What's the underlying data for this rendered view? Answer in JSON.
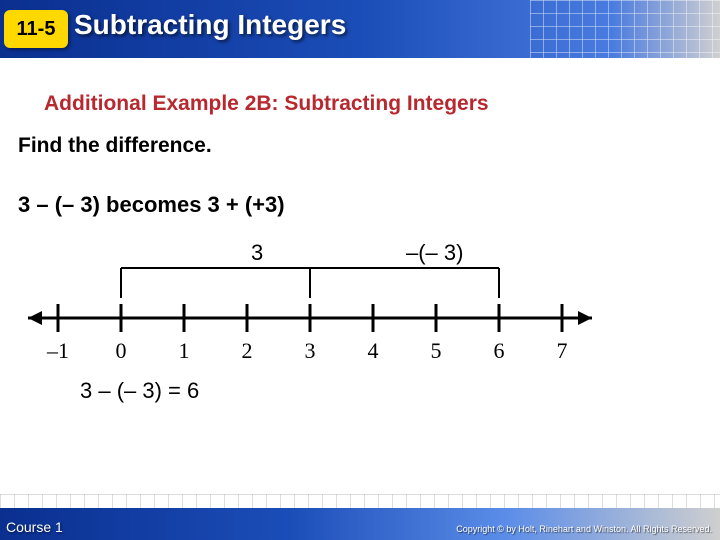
{
  "header": {
    "lesson_number": "11-5",
    "title": "Subtracting Integers"
  },
  "example_header": "Additional Example 2B: Subtracting Integers",
  "instruction": "Find the difference.",
  "transform": "3 – (– 3)  becomes 3 + (+3)",
  "diagram": {
    "label_a": "3",
    "label_b": "–(– 3)",
    "colors": {
      "line": "#000000",
      "tick": "#000000",
      "text_num": "#000000"
    },
    "ticks": [
      "–1",
      "0",
      "1",
      "2",
      "3",
      "4",
      "5",
      "6",
      "7"
    ],
    "bracket1": {
      "start": 1,
      "end": 4
    },
    "bracket2": {
      "start": 4,
      "end": 7
    }
  },
  "result": "3 – (– 3) = 6",
  "footer": {
    "course": "Course 1",
    "copyright": "Copyright © by Holt, Rinehart and Winston. All Rights Reserved."
  }
}
